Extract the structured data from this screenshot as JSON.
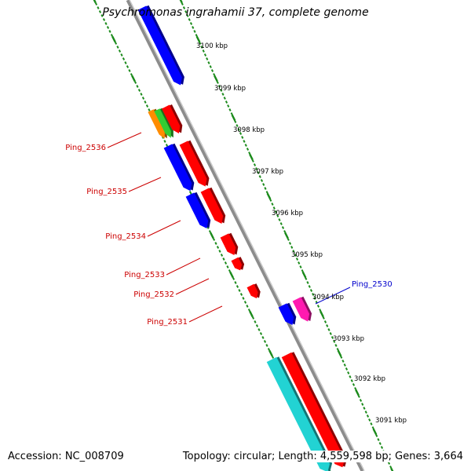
{
  "header": {
    "title": "Psychromonas ingrahamii 37, complete genome"
  },
  "footer": {
    "accession": "Accession: NC_008709",
    "topology": "Topology: circular; Length: 4,559,598 bp; Genes: 3,664"
  },
  "scale_labels": [
    "3100 kbp",
    "3099 kbp",
    "3098 kbp",
    "3097 kbp",
    "3096 kbp",
    "3095 kbp",
    "3094 kbp",
    "3093 kbp",
    "3092 kbp",
    "3091 kbp"
  ],
  "gene_labels": [
    "Ping_2536",
    "Ping_2535",
    "Ping_2534",
    "Ping_2533",
    "Ping_2532",
    "Ping_2531",
    "Ping_2530"
  ],
  "colors": {
    "backbone": "#8c8c8c",
    "ruler": "#1a8a1a",
    "label_red": "#cc0000",
    "label_blue": "#0000cc",
    "gene_red": "#ff0000",
    "gene_blue": "#0000ff",
    "gene_cyan": "#22d3d3",
    "gene_orange": "#ff8c00",
    "gene_green": "#33cc33",
    "gene_magenta": "#ff1ab0"
  }
}
